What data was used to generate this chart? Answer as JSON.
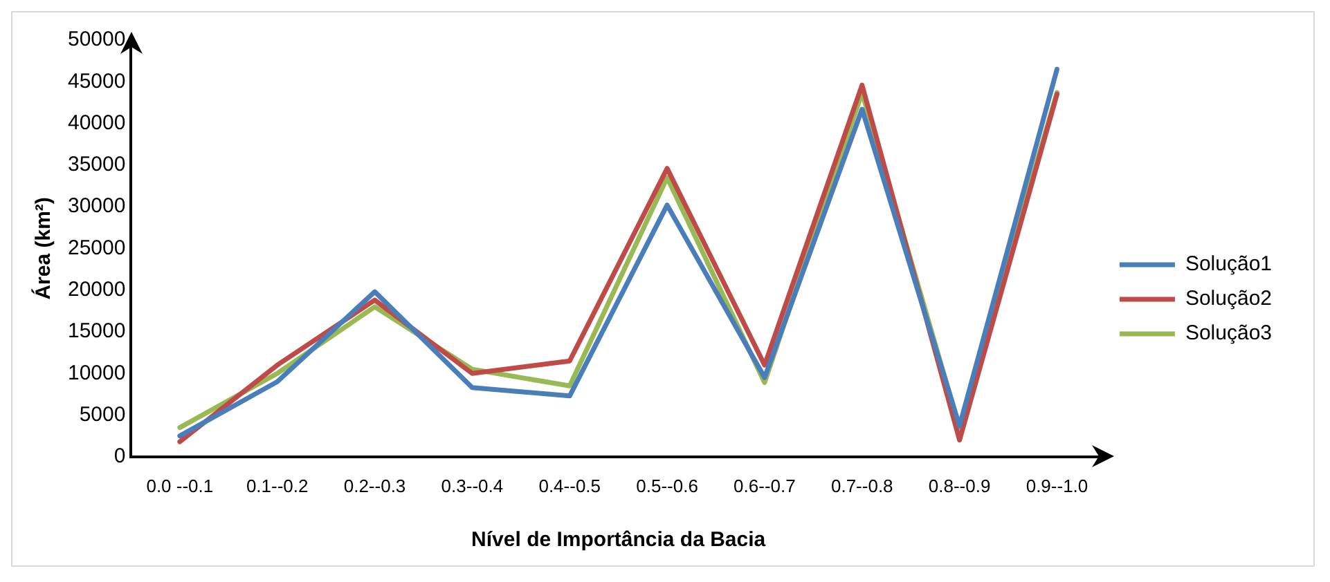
{
  "chart_data": {
    "type": "line",
    "xlabel": "Nível de Importância da Bacia",
    "ylabel": "Área (km²)",
    "categories": [
      "0.0 --0.1",
      "0.1--0.2",
      "0.2--0.3",
      "0.3--0.4",
      "0.4--0.5",
      "0.5--0.6",
      "0.6--0.7",
      "0.7--0.8",
      "0.8--0.9",
      "0.9--1.0"
    ],
    "series": [
      {
        "name": "Solução1",
        "color": "#4a7ebb",
        "values": [
          2500,
          9000,
          19800,
          8300,
          7300,
          30200,
          9500,
          41700,
          3700,
          46500
        ]
      },
      {
        "name": "Solução2",
        "color": "#be4b48",
        "values": [
          1800,
          11000,
          18800,
          10000,
          11500,
          34600,
          11000,
          44600,
          2000,
          43500
        ]
      },
      {
        "name": "Solução3",
        "color": "#98b954",
        "values": [
          3500,
          10000,
          18000,
          10500,
          8500,
          33500,
          8900,
          43700,
          3500,
          43700
        ]
      }
    ],
    "ylim": [
      0,
      50000
    ],
    "yticks": [
      0,
      5000,
      10000,
      15000,
      20000,
      25000,
      30000,
      35000,
      40000,
      45000,
      50000
    ],
    "grid": false,
    "legend": "right",
    "marker": "none",
    "line_style": "solid"
  }
}
